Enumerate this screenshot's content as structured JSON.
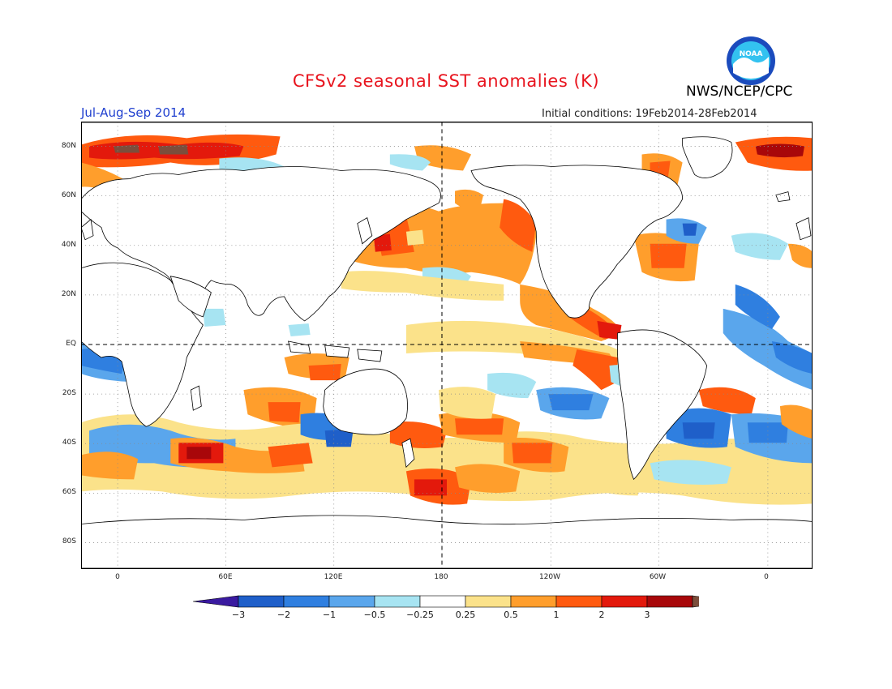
{
  "title": "CFSv2 seasonal SST anomalies (K)",
  "agency": "NWS/NCEP/CPC",
  "logo_text": "NOAA",
  "season": "Jul-Aug-Sep 2014",
  "initial_conditions": "Initial conditions: 19Feb2014-28Feb2014",
  "lat_labels": [
    "80N",
    "60N",
    "40N",
    "20N",
    "EQ",
    "20S",
    "40S",
    "60S",
    "80S"
  ],
  "lon_labels": [
    "0",
    "60E",
    "120E",
    "180",
    "120W",
    "60W",
    "0"
  ],
  "colorbar": {
    "labels": [
      "-3",
      "-2",
      "-1",
      "-0.5",
      "-0.25",
      "0.25",
      "0.5",
      "1",
      "2",
      "3"
    ],
    "colors": [
      "#3a1aa0",
      "#1f5fc9",
      "#2f7fe0",
      "#5aa6ec",
      "#a7e4f2",
      "#ffffff",
      "#fbe28a",
      "#ff9e2c",
      "#ff5a0f",
      "#e3190c",
      "#a8070a",
      "#7b4e3c"
    ]
  },
  "colors": {
    "land": "#ffffff",
    "coast": "#000000",
    "frame": "#000000"
  }
}
